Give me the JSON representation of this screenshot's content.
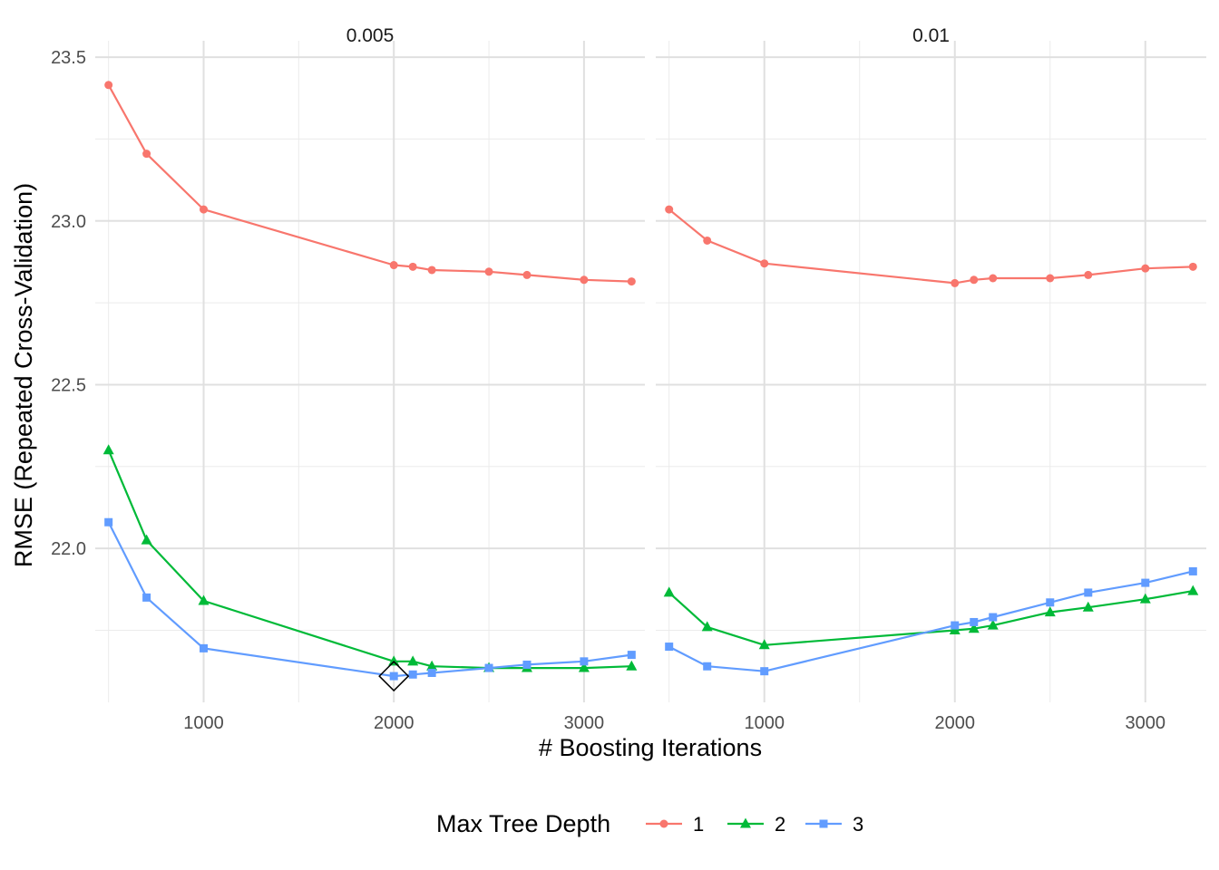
{
  "chart_data": {
    "type": "line",
    "xlabel": "# Boosting Iterations",
    "ylabel": "RMSE (Repeated Cross-Validation)",
    "x_ticks": [
      1000,
      2000,
      3000
    ],
    "y_ticks": [
      22.0,
      22.5,
      23.0,
      23.5
    ],
    "y_tick_labels": [
      "22.0",
      "22.5",
      "23.0",
      "23.5"
    ],
    "xlim": [
      430,
      3320
    ],
    "ylim": [
      21.53,
      23.55
    ],
    "grid": true,
    "legend": {
      "title": "Max Tree Depth",
      "placement": "bottom",
      "entries": [
        {
          "label": "1",
          "color": "#F8766D",
          "shape": "circle"
        },
        {
          "label": "2",
          "color": "#00BA38",
          "shape": "triangle"
        },
        {
          "label": "3",
          "color": "#619CFF",
          "shape": "square"
        }
      ]
    },
    "x": [
      500,
      700,
      1000,
      2000,
      2100,
      2200,
      2500,
      2700,
      3000,
      3250
    ],
    "panels": [
      {
        "strip": "0.005",
        "series": [
          {
            "name": "1",
            "values": [
              23.415,
              23.205,
              23.035,
              22.865,
              22.86,
              22.85,
              22.845,
              22.835,
              22.82,
              22.815
            ]
          },
          {
            "name": "2",
            "values": [
              22.3,
              22.025,
              21.84,
              21.655,
              21.655,
              21.64,
              21.635,
              21.635,
              21.635,
              21.64
            ]
          },
          {
            "name": "3",
            "values": [
              22.08,
              21.85,
              21.695,
              21.61,
              21.615,
              21.62,
              21.635,
              21.645,
              21.655,
              21.675
            ]
          }
        ],
        "highlight": {
          "series": "3",
          "x": 2000,
          "y": 21.61,
          "marker": "diamond"
        }
      },
      {
        "strip": "0.01",
        "series": [
          {
            "name": "1",
            "values": [
              23.035,
              22.94,
              22.87,
              22.81,
              22.82,
              22.825,
              22.825,
              22.835,
              22.855,
              22.86
            ]
          },
          {
            "name": "2",
            "values": [
              21.865,
              21.76,
              21.705,
              21.75,
              21.755,
              21.765,
              21.805,
              21.82,
              21.845,
              21.87
            ]
          },
          {
            "name": "3",
            "values": [
              21.7,
              21.64,
              21.625,
              21.765,
              21.775,
              21.79,
              21.835,
              21.865,
              21.895,
              21.93
            ]
          }
        ]
      }
    ]
  }
}
